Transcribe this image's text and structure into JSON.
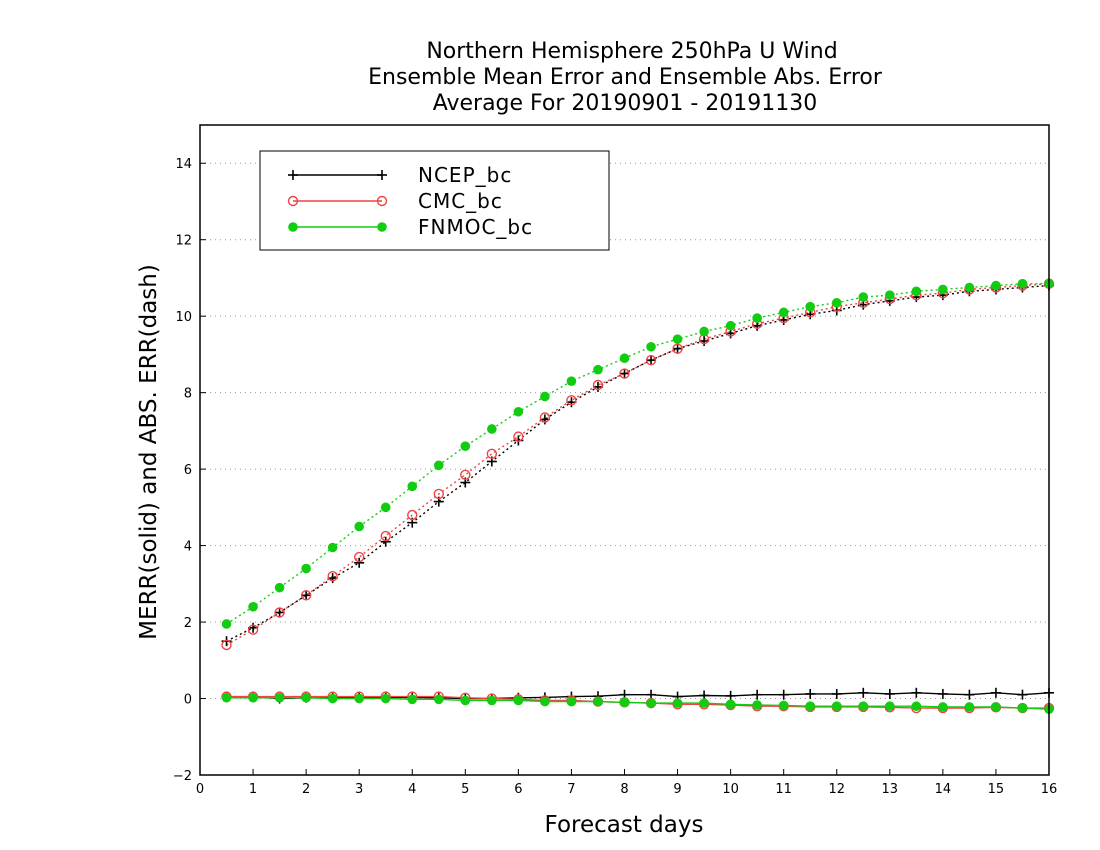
{
  "chart_data": {
    "type": "line",
    "title": [
      "Northern Hemisphere 250hPa U Wind",
      "Ensemble Mean Error and Ensemble Abs. Error",
      "Average For 20190901 - 20191130"
    ],
    "xlabel": "Forecast days",
    "ylabel": "MERR(solid) and ABS. ERR(dash)",
    "xlim": [
      0,
      16
    ],
    "ylim": [
      -2,
      15
    ],
    "xticks": [
      0,
      1,
      2,
      3,
      4,
      5,
      6,
      7,
      8,
      9,
      10,
      11,
      12,
      13,
      14,
      15,
      16
    ],
    "yticks": [
      -2,
      0,
      2,
      4,
      6,
      8,
      10,
      12,
      14
    ],
    "grid": "horizontal dotted",
    "legend_position": "top-left",
    "x": [
      0.5,
      1,
      1.5,
      2,
      2.5,
      3,
      3.5,
      4,
      4.5,
      5,
      5.5,
      6,
      6.5,
      7,
      7.5,
      8,
      8.5,
      9,
      9.5,
      10,
      10.5,
      11,
      11.5,
      12,
      12.5,
      13,
      13.5,
      14,
      14.5,
      15,
      15.5,
      16
    ],
    "series": [
      {
        "name": "NCEP_bc",
        "color": "#000000",
        "marker": "plus",
        "abs_err": [
          1.5,
          1.85,
          2.25,
          2.7,
          3.15,
          3.55,
          4.1,
          4.6,
          5.15,
          5.65,
          6.2,
          6.75,
          7.3,
          7.75,
          8.15,
          8.5,
          8.85,
          9.15,
          9.35,
          9.55,
          9.75,
          9.9,
          10.05,
          10.15,
          10.3,
          10.4,
          10.5,
          10.55,
          10.65,
          10.7,
          10.75,
          10.8
        ],
        "mean_err": [
          0.05,
          0.04,
          0.0,
          0.02,
          0.02,
          0.03,
          0.03,
          0.03,
          0.02,
          0.0,
          0.0,
          0.02,
          0.03,
          0.05,
          0.06,
          0.1,
          0.1,
          0.05,
          0.08,
          0.07,
          0.1,
          0.1,
          0.12,
          0.12,
          0.15,
          0.12,
          0.15,
          0.12,
          0.1,
          0.15,
          0.1,
          0.15
        ]
      },
      {
        "name": "CMC_bc",
        "color": "#ee4444",
        "marker": "open-circle",
        "abs_err": [
          1.4,
          1.8,
          2.25,
          2.7,
          3.2,
          3.7,
          4.25,
          4.8,
          5.35,
          5.85,
          6.4,
          6.85,
          7.35,
          7.8,
          8.2,
          8.5,
          8.85,
          9.15,
          9.4,
          9.6,
          9.8,
          9.95,
          10.1,
          10.25,
          10.35,
          10.45,
          10.55,
          10.6,
          10.7,
          10.75,
          10.8,
          10.85
        ],
        "mean_err": [
          0.05,
          0.05,
          0.05,
          0.05,
          0.05,
          0.05,
          0.05,
          0.05,
          0.05,
          0.02,
          0.0,
          -0.02,
          -0.05,
          -0.05,
          -0.08,
          -0.1,
          -0.12,
          -0.15,
          -0.15,
          -0.17,
          -0.2,
          -0.2,
          -0.22,
          -0.22,
          -0.22,
          -0.23,
          -0.25,
          -0.25,
          -0.25,
          -0.23,
          -0.25,
          -0.25
        ]
      },
      {
        "name": "FNMOC_bc",
        "color": "#11cc11",
        "marker": "filled-circle",
        "abs_err": [
          1.95,
          2.4,
          2.9,
          3.4,
          3.95,
          4.5,
          5.0,
          5.55,
          6.1,
          6.6,
          7.05,
          7.5,
          7.9,
          8.3,
          8.6,
          8.9,
          9.2,
          9.4,
          9.6,
          9.75,
          9.95,
          10.1,
          10.25,
          10.35,
          10.5,
          10.55,
          10.65,
          10.7,
          10.75,
          10.8,
          10.85,
          10.85
        ],
        "mean_err": [
          0.02,
          0.02,
          0.02,
          0.02,
          0.0,
          0.0,
          0.0,
          -0.02,
          -0.02,
          -0.05,
          -0.05,
          -0.05,
          -0.08,
          -0.08,
          -0.08,
          -0.1,
          -0.12,
          -0.12,
          -0.12,
          -0.15,
          -0.17,
          -0.18,
          -0.2,
          -0.2,
          -0.2,
          -0.2,
          -0.2,
          -0.22,
          -0.22,
          -0.22,
          -0.25,
          -0.28
        ]
      }
    ]
  }
}
